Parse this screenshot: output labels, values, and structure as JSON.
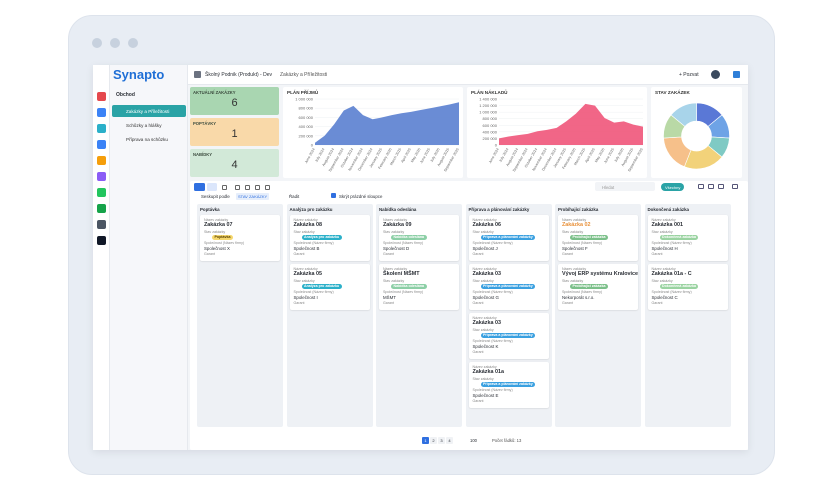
{
  "app": {
    "logo": "Synapto",
    "workspace": "Školný Podnik (Produkt) - Dev",
    "breadcrumb": "Zakázky a Příležitosti",
    "invite": "+ Pozvat"
  },
  "sidebar": {
    "section": "Obchod",
    "items": [
      "Zakázky a Příležitosti",
      "Schůzky a hlášky",
      "Příprava na schůzku"
    ]
  },
  "kpis": [
    {
      "label": "AKTUÁLNÍ ZAKÁZKY",
      "value": 6,
      "color": "#a9d6b1"
    },
    {
      "label": "POPTÁVKY",
      "value": 1,
      "color": "#f9d9a9"
    },
    {
      "label": "NABÍDKY",
      "value": 4,
      "color": "#d2e9d8"
    }
  ],
  "charts": [
    {
      "type": "area",
      "title": "PLÁN PŘÍJMŮ",
      "color": "#5a7fd0",
      "categories": [
        "June 2024",
        "July 2024",
        "August 2024",
        "September 2024",
        "October 2024",
        "November 2024",
        "December 2024",
        "January 2025",
        "February 2025",
        "March 2025",
        "April 2025",
        "May 2025",
        "June 2025",
        "July 2025",
        "August 2025",
        "September 2025"
      ],
      "values": [
        50000,
        200000,
        450000,
        750000,
        850000,
        650000,
        560000,
        600000,
        650000,
        690000,
        720000,
        760000,
        800000,
        840000,
        880000,
        930000
      ],
      "ylim": [
        0,
        1000000
      ],
      "yticks": [
        {
          "value": 0,
          "label": "0"
        },
        {
          "value": 200000,
          "label": "200 000"
        },
        {
          "value": 400000,
          "label": "400 000"
        },
        {
          "value": 600000,
          "label": "600 000"
        },
        {
          "value": 800000,
          "label": "800 000"
        },
        {
          "value": 1000000,
          "label": "1 000 000"
        }
      ]
    },
    {
      "type": "area",
      "title": "PLÁN NÁKLADŮ",
      "color": "#f0557a",
      "categories": [
        "June 2024",
        "July 2024",
        "August 2024",
        "September 2024",
        "October 2024",
        "November 2024",
        "December 2024",
        "January 2025",
        "February 2025",
        "March 2025",
        "April 2025",
        "May 2025",
        "June 2025",
        "July 2025",
        "August 2025",
        "September 2025"
      ],
      "values": [
        200000,
        260000,
        300000,
        340000,
        420000,
        460000,
        520000,
        720000,
        950000,
        1250000,
        1200000,
        820000,
        680000,
        720000,
        620000,
        560000
      ],
      "ylim": [
        0,
        1400000
      ],
      "yticks": [
        {
          "value": 0,
          "label": "0"
        },
        {
          "value": 200000,
          "label": "200 000"
        },
        {
          "value": 400000,
          "label": "400 000"
        },
        {
          "value": 600000,
          "label": "600 000"
        },
        {
          "value": 800000,
          "label": "800 000"
        },
        {
          "value": 1000000,
          "label": "1 000 000"
        },
        {
          "value": 1200000,
          "label": "1 200 000"
        },
        {
          "value": 1400000,
          "label": "1 400 000"
        }
      ]
    },
    {
      "type": "donut",
      "title": "STAV ZAKÁZEK",
      "values": [
        14,
        12,
        10,
        20,
        18,
        12,
        14
      ],
      "colors": [
        "#5a78d6",
        "#6ea3e6",
        "#7fcac4",
        "#f2d27a",
        "#f6c08a",
        "#b9d9a6",
        "#a8d4ea"
      ]
    }
  ],
  "toolbar": {
    "group_by": "Seskupit podle",
    "group_field": "STAV ZAKÁZKY",
    "sort": "Řadit",
    "hide_empty": "Skrýt prázdné sloupce",
    "search": "Hledat",
    "filter": "Všechny"
  },
  "card_labels": {
    "name": "Název zakázky",
    "status": "Stav zakázky",
    "company": "Společnost (Název firmy)",
    "guarantor": "Garant"
  },
  "columns": [
    {
      "title": "Poptávka",
      "status_color": "#f5d76e",
      "cards": [
        {
          "title": "Zakázka 07",
          "company": "Společnost X"
        }
      ]
    },
    {
      "title": "Analýza pro zakázku",
      "status_color": "#2bb0c9",
      "cards": [
        {
          "title": "Zakázka 08",
          "company": "Společnost B"
        },
        {
          "title": "Zakázka 05",
          "company": "Společnost I"
        }
      ]
    },
    {
      "title": "Nabídka odeslána",
      "status_color": "#8ccfa6",
      "cards": [
        {
          "title": "Zakázka 09",
          "company": "Společnost D"
        },
        {
          "title": "Školení MŠMT",
          "company": "MŠMT"
        }
      ]
    },
    {
      "title": "Příprava a plánování zakázky",
      "status_color": "#3aa0e0",
      "cards": [
        {
          "title": "Zakázka 06",
          "company": "Společnost J"
        },
        {
          "title": "Zakázka 03",
          "company": "Společnost G"
        },
        {
          "title": "Zakázka 03",
          "company": "Společnost K"
        },
        {
          "title": "Zakázka 01a",
          "company": "Společnost E"
        }
      ]
    },
    {
      "title": "Probíhající zakázka",
      "status_color": "#7cc08a",
      "cards": [
        {
          "title": "Zakázka 02",
          "company": "Společnost F"
        },
        {
          "title": "Vývoj ERP systému Kralovice",
          "company": "Nekorporát s.r.o."
        }
      ]
    },
    {
      "title": "Dokončená zakázka",
      "status_color": "#9ad3a1",
      "cards": [
        {
          "title": "Zakázka 001",
          "company": "Společnost H"
        },
        {
          "title": "Zakázka 01a - C",
          "company": "Společnost C"
        }
      ]
    }
  ],
  "pagination": {
    "pages": [
      1,
      2,
      3,
      4
    ],
    "page_size": 100,
    "rows": "Počet řádků: 13"
  }
}
